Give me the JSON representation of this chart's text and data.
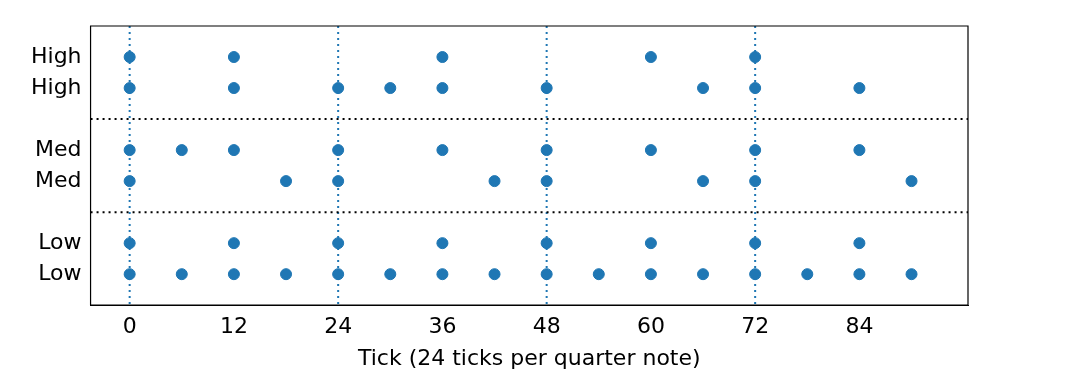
{
  "chart_data": {
    "type": "scatter",
    "orientation": "horizontal",
    "xlabel": "Tick (24 ticks per quarter note)",
    "categories": [
      "High",
      "High",
      null,
      "Med",
      "Med",
      null,
      "Low",
      "Low"
    ],
    "series": [
      {
        "color": "#1f77b4",
        "values": [
          0,
          0,
          null,
          0,
          0,
          null,
          0,
          0
        ]
      },
      {
        "color": "#1f77b4",
        "values": [
          12,
          12,
          null,
          6,
          18,
          null,
          12,
          6
        ]
      },
      {
        "color": "#1f77b4",
        "values": [
          36,
          24,
          null,
          12,
          24,
          null,
          24,
          12
        ]
      },
      {
        "color": "#1f77b4",
        "values": [
          60,
          30,
          null,
          24,
          42,
          null,
          36,
          18
        ]
      },
      {
        "color": "#1f77b4",
        "values": [
          72,
          36,
          null,
          36,
          48,
          null,
          48,
          24
        ]
      },
      {
        "color": "#1f77b4",
        "values": [
          null,
          48,
          null,
          48,
          66,
          null,
          60,
          30
        ]
      },
      {
        "color": "#1f77b4",
        "values": [
          null,
          66,
          null,
          60,
          72,
          null,
          72,
          36
        ]
      },
      {
        "color": "#1f77b4",
        "values": [
          null,
          72,
          null,
          72,
          90,
          null,
          84,
          42
        ]
      },
      {
        "color": "#1f77b4",
        "values": [
          null,
          84,
          null,
          84,
          null,
          null,
          null,
          48
        ]
      },
      {
        "color": "#1f77b4",
        "values": [
          null,
          null,
          null,
          null,
          null,
          null,
          null,
          54
        ]
      },
      {
        "color": "#1f77b4",
        "values": [
          null,
          null,
          null,
          null,
          null,
          null,
          null,
          60
        ]
      },
      {
        "color": "#1f77b4",
        "values": [
          null,
          null,
          null,
          null,
          null,
          null,
          null,
          66
        ]
      },
      {
        "color": "#1f77b4",
        "values": [
          null,
          null,
          null,
          null,
          null,
          null,
          null,
          72
        ]
      },
      {
        "color": "#1f77b4",
        "values": [
          null,
          null,
          null,
          null,
          null,
          null,
          null,
          78
        ]
      },
      {
        "color": "#1f77b4",
        "values": [
          null,
          null,
          null,
          null,
          null,
          null,
          null,
          84
        ]
      },
      {
        "color": "#1f77b4",
        "values": [
          null,
          null,
          null,
          null,
          null,
          null,
          null,
          90
        ]
      }
    ],
    "xlim": [
      -4.5,
      96.5
    ],
    "xticks": [
      0,
      12,
      24,
      36,
      48,
      60,
      72,
      84
    ],
    "ref_lines": [
      {
        "axis": "x",
        "value": 0,
        "color": "#1f77b4",
        "line_style": "dotted"
      },
      {
        "axis": "x",
        "value": 24,
        "color": "#1f77b4",
        "line_style": "dotted"
      },
      {
        "axis": "x",
        "value": 48,
        "color": "#1f77b4",
        "line_style": "dotted"
      },
      {
        "axis": "x",
        "value": 72,
        "color": "#1f77b4",
        "line_style": "dotted"
      }
    ],
    "marker": "circle"
  }
}
